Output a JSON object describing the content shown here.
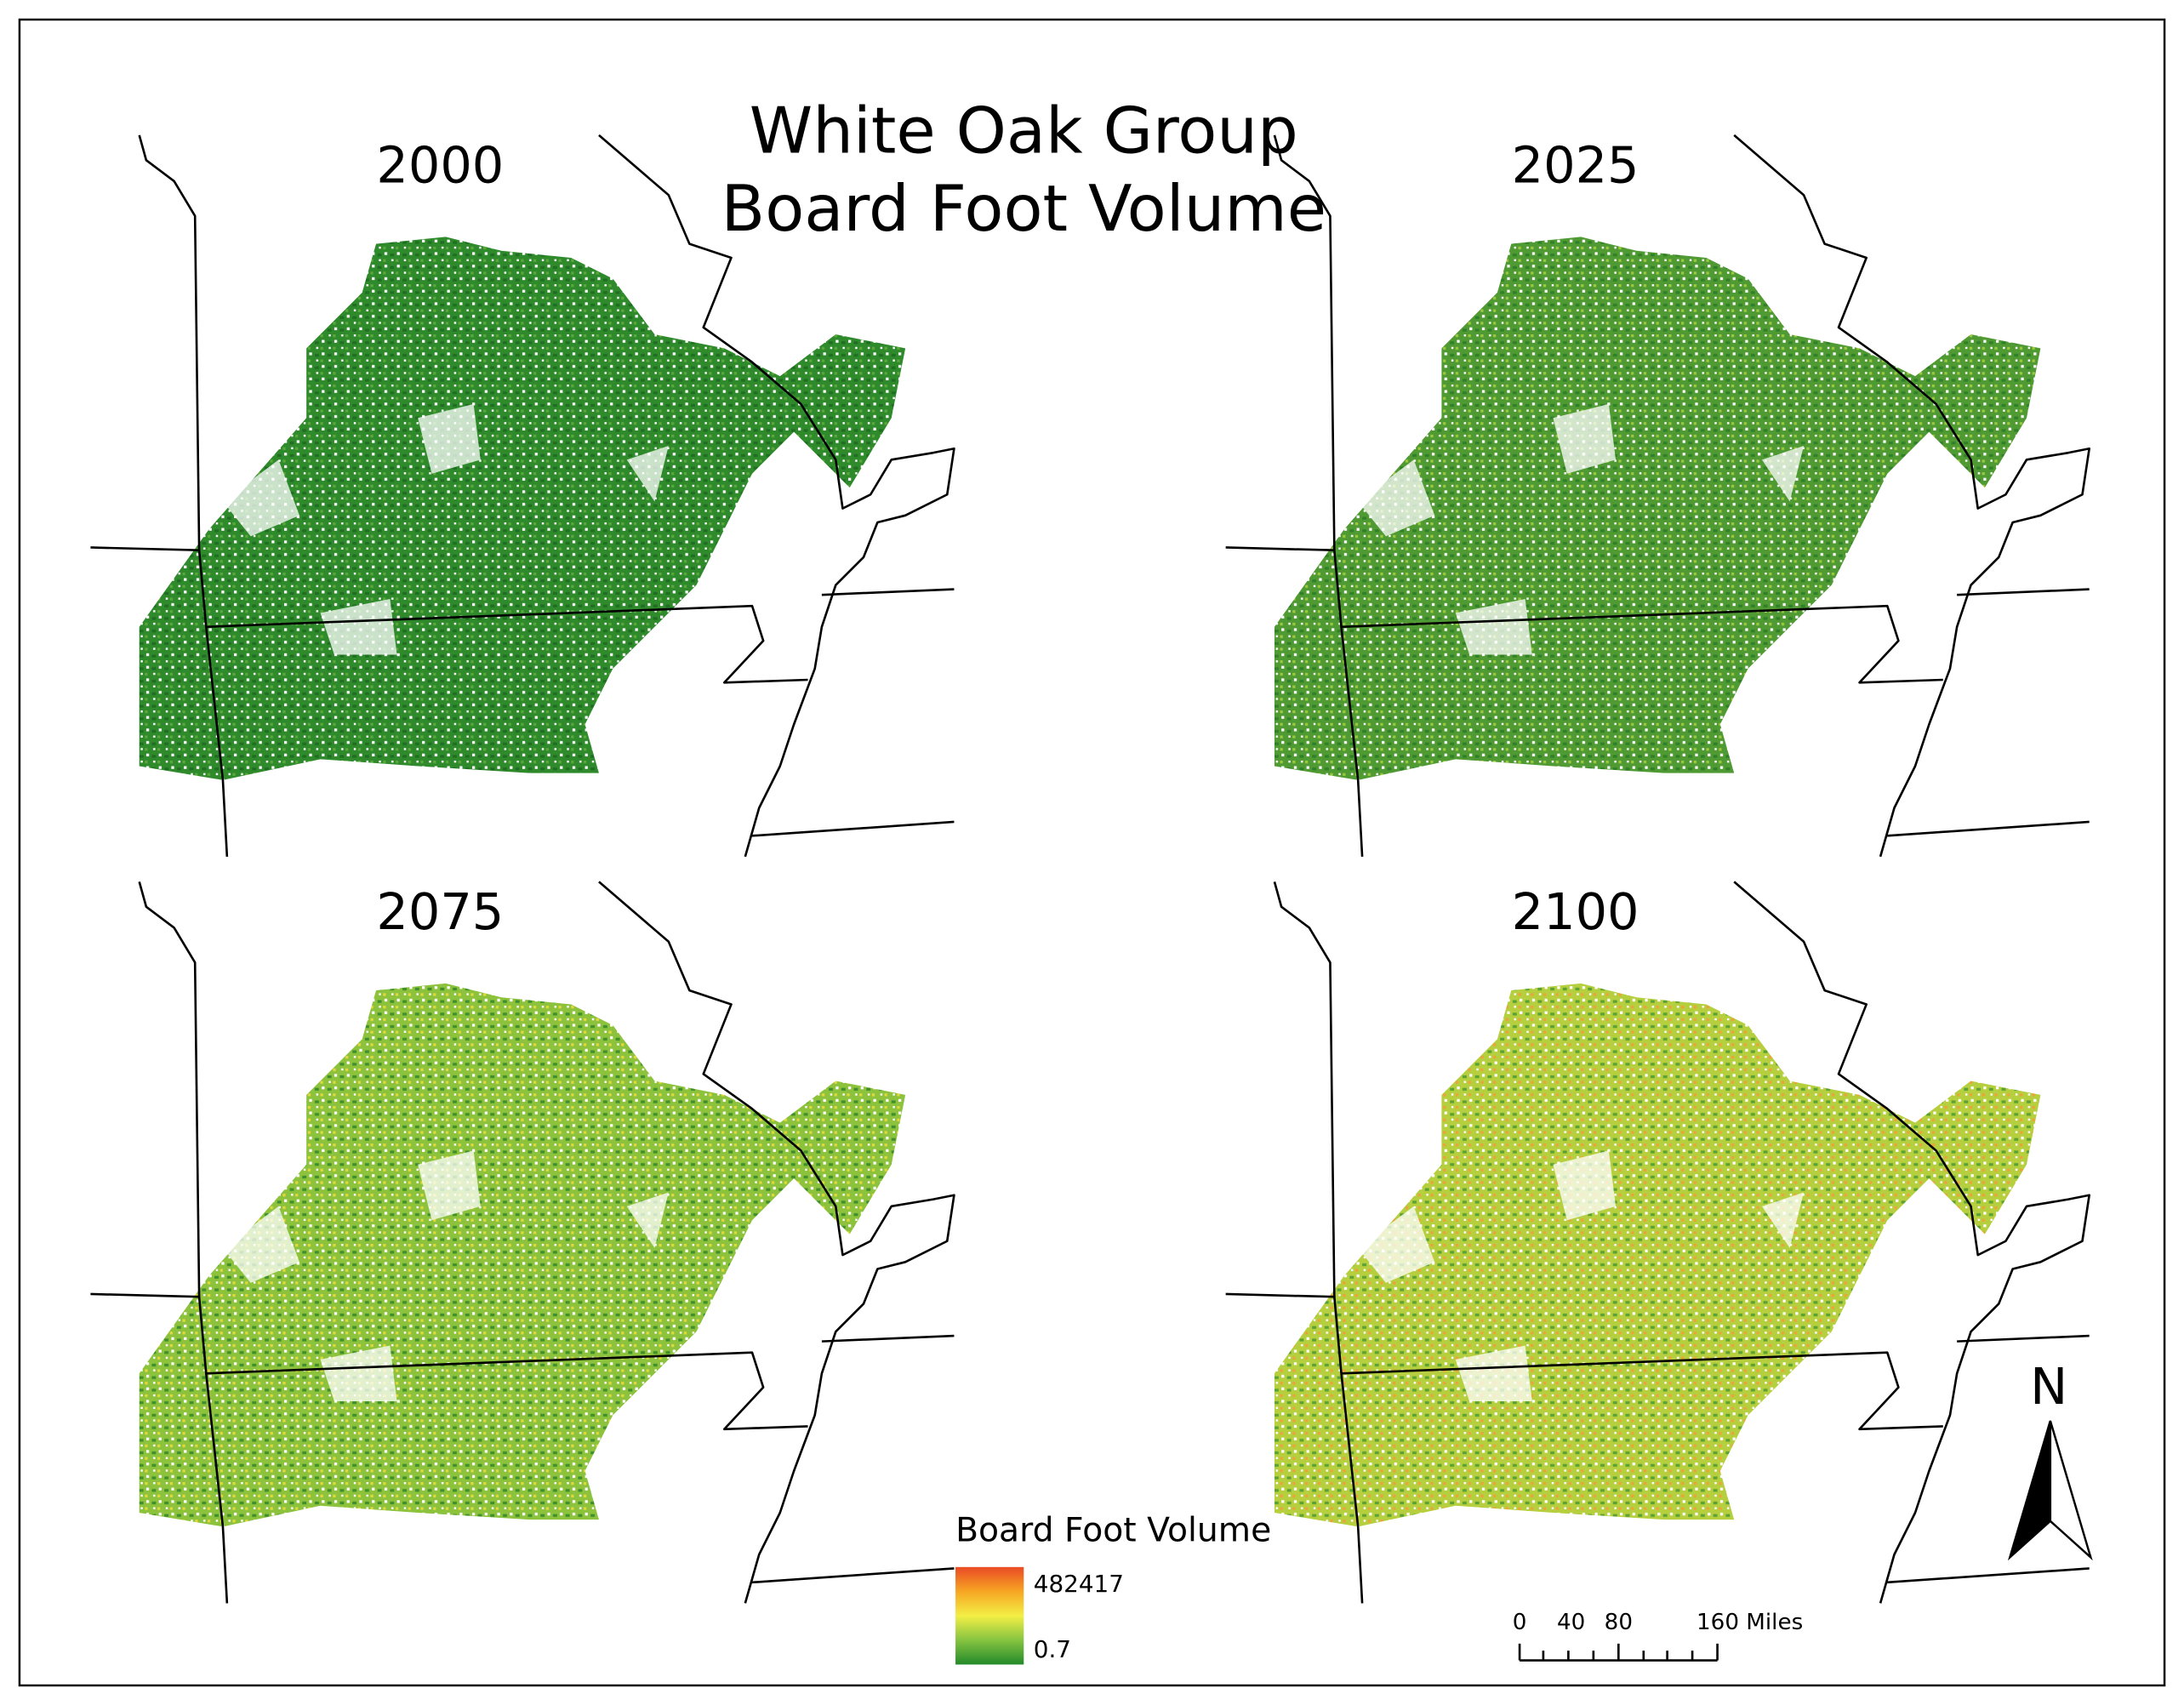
{
  "map": {
    "title": [
      "White Oak Group",
      "Board Foot Volume"
    ],
    "panels": [
      {
        "label": "2000"
      },
      {
        "label": "2025"
      },
      {
        "label": "2075"
      },
      {
        "label": "2100"
      }
    ],
    "legend": {
      "title": "Board Foot Volume",
      "max": "482417",
      "min": "0.7"
    },
    "scale_bar": {
      "labels": [
        "0",
        "40",
        "80",
        "160 Miles"
      ]
    },
    "north_arrow": {
      "label": "N"
    }
  }
}
